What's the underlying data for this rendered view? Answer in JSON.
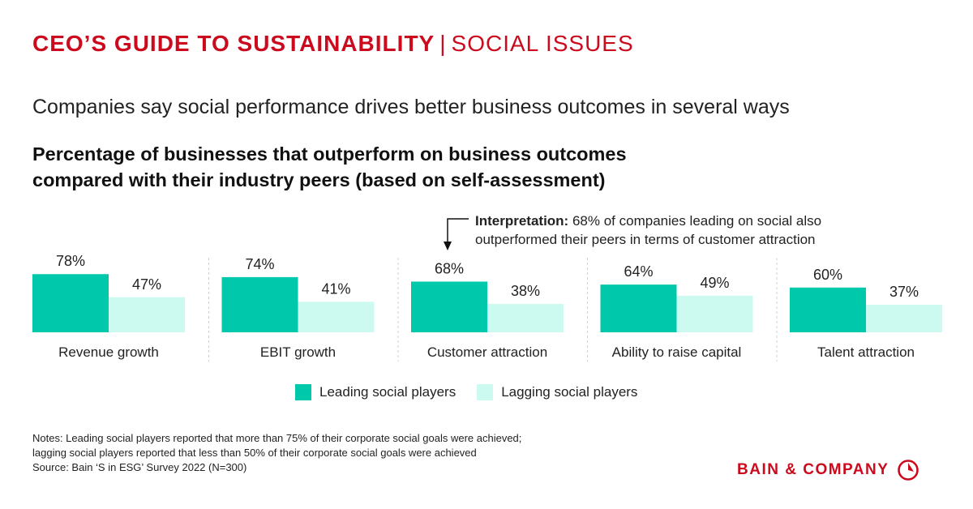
{
  "header": {
    "bold": "CEO’S GUIDE TO SUSTAINABILITY",
    "separator": "|",
    "light": "SOCIAL ISSUES"
  },
  "subtitle": "Companies say social performance drives better business outcomes in several ways",
  "chart_data": {
    "type": "bar",
    "title": "Percentage of businesses that outperform on business outcomes compared with their industry peers (based on self-assessment)",
    "title_lines": [
      "Percentage of businesses that outperform on business outcomes",
      "compared with their industry peers (based on self-assessment)"
    ],
    "categories": [
      "Revenue growth",
      "EBIT growth",
      "Customer attraction",
      "Ability to raise capital",
      "Talent attraction"
    ],
    "series": [
      {
        "name": "Leading social players",
        "values": [
          78,
          74,
          68,
          64,
          60
        ],
        "labels": [
          "78%",
          "74%",
          "68%",
          "64%",
          "60%"
        ],
        "color": "#00c9ab"
      },
      {
        "name": "Lagging social players",
        "values": [
          47,
          41,
          38,
          49,
          37
        ],
        "labels": [
          "47%",
          "41%",
          "38%",
          "49%",
          "37%"
        ],
        "color": "#ccfaf0"
      }
    ],
    "ylim": [
      0,
      100
    ],
    "grid": false,
    "legend": "bottom-center",
    "annotation": {
      "category_index": 2,
      "label": "Interpretation:",
      "line1": "68% of companies leading on social also",
      "line2": "outperformed their peers in terms of customer attraction"
    }
  },
  "notes": [
    "Notes: Leading social players reported that more than 75% of their corporate social goals were achieved;",
    "lagging social players reported that less than 50% of their corporate social goals were achieved",
    "Source: Bain ‘S in ESG’ Survey 2022 (N=300)"
  ],
  "logo": {
    "text": "BAIN & COMPANY"
  },
  "colors": {
    "brand_red": "#cc0a1d",
    "divider": "#d0d0d0"
  }
}
